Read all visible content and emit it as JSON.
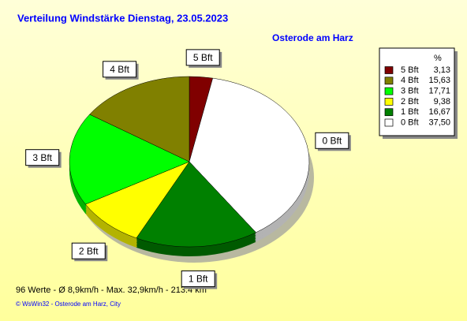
{
  "chart_data": {
    "type": "pie",
    "title": "Verteilung Windstärke  Dienstag, 23.05.2023",
    "subtitle": "Osterode am Harz",
    "legend_title": "%",
    "categories": [
      "5 Bft",
      "4 Bft",
      "3 Bft",
      "2 Bft",
      "1 Bft",
      "0 Bft"
    ],
    "values": [
      3.13,
      15.63,
      17.71,
      9.38,
      16.67,
      37.5
    ],
    "value_labels": [
      "3,13",
      "15,63",
      "17,71",
      "9,38",
      "16,67",
      "37,50"
    ],
    "colors": [
      "#800000",
      "#808000",
      "#00ff00",
      "#ffff00",
      "#008000",
      "#ffffff"
    ],
    "footer": "96 Werte   -   Ø 8,9km/h  -  Max. 32,9km/h   -   213.4 km",
    "copyright": "© WsWin32  -  Osterode am Harz, City"
  }
}
